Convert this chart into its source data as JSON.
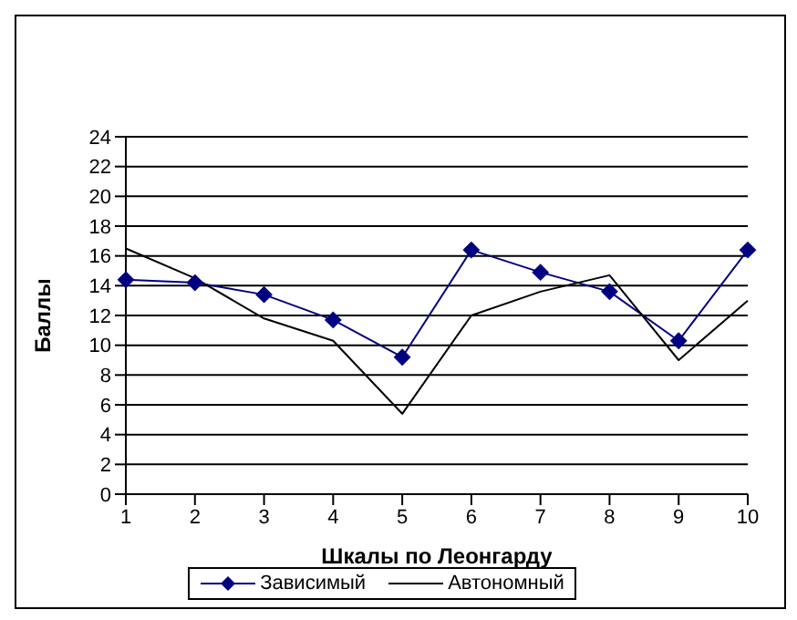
{
  "chart_data": {
    "type": "line",
    "xlabel": "Шкалы по Леонгарду",
    "ylabel": "Баллы",
    "categories": [
      "1",
      "2",
      "3",
      "4",
      "5",
      "6",
      "7",
      "8",
      "9",
      "10"
    ],
    "series": [
      {
        "name": "Зависимый",
        "color": "#000080",
        "marker": "diamond",
        "values": [
          14.4,
          14.2,
          13.4,
          11.7,
          9.2,
          16.4,
          14.9,
          13.6,
          10.3,
          16.4
        ]
      },
      {
        "name": "Автономный",
        "color": "#000000",
        "marker": "none",
        "values": [
          16.5,
          14.5,
          11.8,
          10.3,
          5.4,
          12.0,
          13.6,
          14.7,
          9.0,
          13.0
        ]
      }
    ],
    "ylim": [
      0,
      24
    ],
    "yticks": [
      0,
      2,
      4,
      6,
      8,
      10,
      12,
      14,
      16,
      18,
      20,
      22,
      24
    ],
    "grid": "y",
    "legend": "bottom"
  }
}
